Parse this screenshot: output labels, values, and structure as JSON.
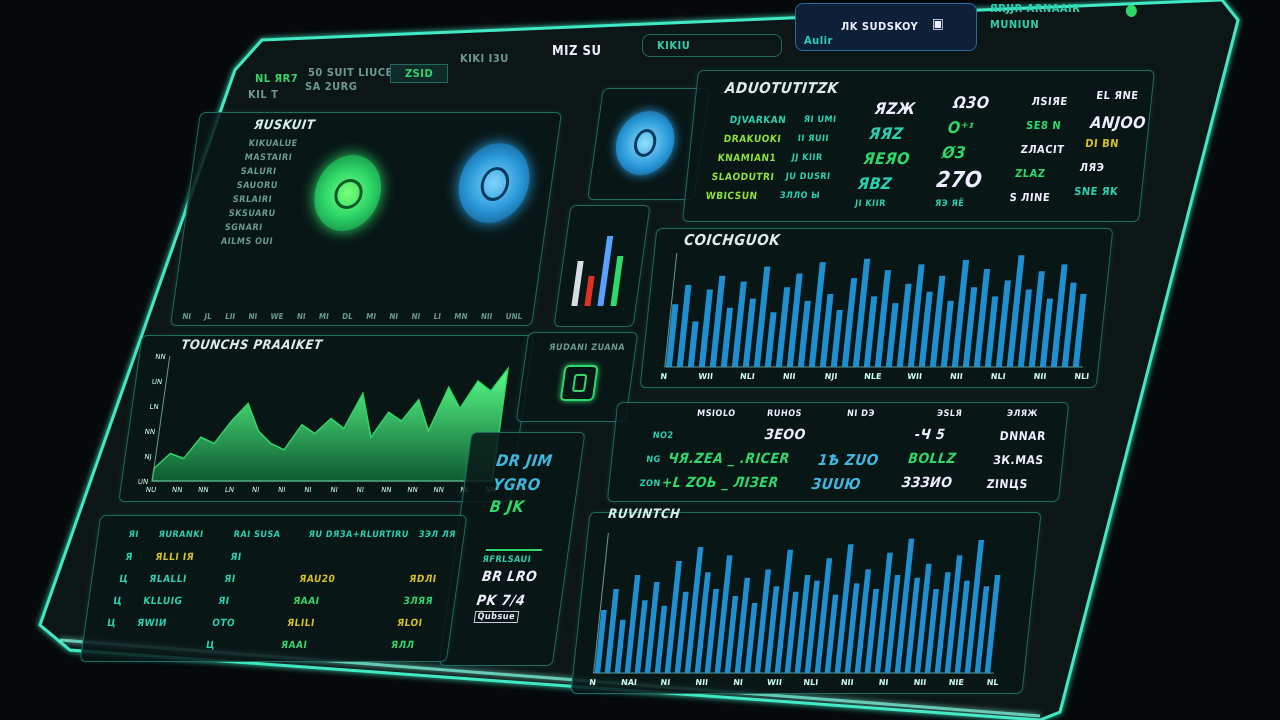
{
  "top_bar": {
    "left_labels": [
      "NL ЯR7",
      "KIL T",
      "50 SUIT LIUCE",
      "SA 2URG"
    ],
    "value_chip": "ZSID",
    "center_labels": [
      "KIKI I3U",
      "MIZ SU"
    ],
    "search_chip": "KIKIU",
    "status_label": "ЛK SUDSKOY",
    "status_sub": "Aulir",
    "right_labels": [
      "ЯRJJR ARNAAIR",
      "MUNIUN"
    ]
  },
  "circles_panel": {
    "title": "ЯUSKUIT",
    "list": [
      "KIKUALUE",
      "MASTAIRI",
      "SALURI",
      "SAUORU",
      "SRLAIRI",
      "SKSUARU",
      "SGNARI",
      "AILMS OUI"
    ],
    "x_ticks": [
      "NI",
      "JL",
      "LII",
      "NI",
      "WE",
      "NI",
      "MI",
      "DL",
      "MI",
      "NI",
      "NI",
      "LI",
      "MN",
      "NII",
      "UNL"
    ]
  },
  "kpi_panel": {
    "title": "ADUOTUTITZK",
    "labels_left": [
      "DJVARKAN",
      "DRAKUOKI",
      "KNAMIAN1",
      "SLAODUTRI",
      "WBICSUN"
    ],
    "labels_sub": [
      "ЯI UMI",
      "II ЯUII",
      "JJ KIIR",
      "JU DUSRI",
      "ЗЛЛО Ы"
    ],
    "col1": [
      "ЯZЖ",
      "ЯЯZ",
      "ЯEЯO",
      "ЯBZ"
    ],
    "col1_foot": "JI KIIR",
    "col2": [
      "Ω3O",
      "O⁺ᶦ",
      "ØЗ",
      "27O"
    ],
    "col2_foot": "ЯЭ ЯЁ",
    "col3": [
      "ЛSIЯE",
      "SE8 N",
      "ZЛACIT",
      "ZLAZ",
      "S ЛINE"
    ],
    "col4": [
      "EL ЯNE",
      "ANJOO",
      "DI BN",
      "ЛЯЭ",
      "SNE ЯK"
    ]
  },
  "mini_chart_panel": {
    "bar_colors": [
      "#d8dde5",
      "#e03020",
      "#5aa0ff",
      "#2fd86a"
    ]
  },
  "lock_panel": {
    "title": "ЯUDANI ZUANA"
  },
  "top_bar_chart": {
    "title": "COICHGUOK",
    "x_ticks": [
      "N",
      "WII",
      "NLI",
      "NII",
      "NJI",
      "NLE",
      "WII",
      "NII",
      "NLI",
      "NII",
      "NLI"
    ]
  },
  "area_chart": {
    "title": "TOUNCHS PRAAIKET",
    "y_ticks": [
      "NN",
      "UN",
      "LN",
      "NN",
      "NJ",
      "UN"
    ],
    "x_ticks": [
      "NU",
      "NN",
      "NN",
      "LN",
      "NI",
      "NI",
      "NI",
      "NI",
      "NI",
      "NN",
      "NN",
      "NN",
      "NL",
      "NN"
    ]
  },
  "middle_table": {
    "headers": [
      "MSIOLO",
      "RUHOS",
      "NI DЭ",
      "ЭSLЯ",
      "ЭЛЯЖ"
    ],
    "rows": [
      {
        "label": "NO2",
        "c1": "",
        "c2": "ЗЕОО",
        "c3": "",
        "c4": "-Ч 5",
        "c5": "DNNAR"
      },
      {
        "label": "NG",
        "c1": "ЧЯ.ZEA _ .RICER",
        "c2": "",
        "c3": "1Ѣ ZUO",
        "c4": "BOLLZ",
        "c5": "ЗК.MAS"
      },
      {
        "label": "ZON",
        "c1": "+L ZOЬ _ ЛIЗER",
        "c2": "",
        "c3": "ЗUUЮ",
        "c4": "ЗЗЗИО",
        "c5": "ZINЦS"
      }
    ]
  },
  "side_panel": {
    "lines": [
      "DR JIM",
      "YGRO",
      "B JK"
    ],
    "sub": "ЯFRLSAUI",
    "footer_values": [
      "BR LRO",
      "PK 7/4"
    ],
    "footer_sub": "Qubsue"
  },
  "bottom_table": {
    "headers": [
      "ЯI",
      "ЯURANKI",
      "RAI SUSA",
      "ЯU DЯЗA+RLURTIRU",
      "ЗЭЛ ЛЯ"
    ],
    "rows": [
      [
        "Я",
        "ЯLLI IЯ",
        "ЯI",
        "",
        ""
      ],
      [
        "Ц",
        "ЯLALLI",
        "ЯI",
        "ЯAU20",
        "ЯDЛI"
      ],
      [
        "Ц",
        "KLLUIG",
        "ЯI",
        "ЯAAI",
        "ЗЛЯЯ"
      ],
      [
        "Ц",
        "ЯWIИ",
        "ОTO",
        "ЯLILI",
        "ЯLOI"
      ],
      [
        "",
        "",
        "Ц",
        "ЯAAI",
        "ЯЛЛ"
      ]
    ]
  },
  "bottom_bar_chart": {
    "title": "RUVINTCH",
    "x_ticks": [
      "N",
      "NAI",
      "NI",
      "NII",
      "NI",
      "WII",
      "NLI",
      "NII",
      "NI",
      "NII",
      "NIE",
      "NL"
    ]
  },
  "colors": {
    "frame": "#3fe8c4",
    "bar_blue": "#1f8fd0",
    "area_green": "#2fd86a",
    "panel_border": "#1f6b5e"
  },
  "chart_data": [
    {
      "type": "bar",
      "title": "COICHGUOK",
      "values": [
        55,
        72,
        40,
        68,
        80,
        52,
        75,
        60,
        88,
        48,
        70,
        82,
        58,
        92,
        64,
        50,
        78,
        95,
        62,
        85,
        56,
        73,
        90,
        66,
        80,
        58,
        94,
        70,
        86,
        62,
        76,
        98,
        68,
        84,
        60,
        90,
        74,
        64
      ]
    },
    {
      "type": "area",
      "title": "TOUNCHS PRAAIKET",
      "values": [
        10,
        22,
        18,
        35,
        30,
        48,
        62,
        40,
        30,
        25,
        45,
        38,
        50,
        42,
        70,
        35,
        55,
        48,
        65,
        40,
        75,
        58,
        80,
        72,
        90
      ]
    },
    {
      "type": "bar",
      "title": "RUVINTCH",
      "values": [
        45,
        60,
        38,
        70,
        52,
        65,
        48,
        80,
        58,
        90,
        72,
        60,
        84,
        55,
        68,
        50,
        74,
        62,
        88,
        58,
        70,
        66,
        82,
        56,
        92,
        64,
        74,
        60,
        86,
        70,
        96,
        68,
        78,
        60,
        72,
        84,
        66,
        95,
        62,
        70
      ]
    }
  ]
}
